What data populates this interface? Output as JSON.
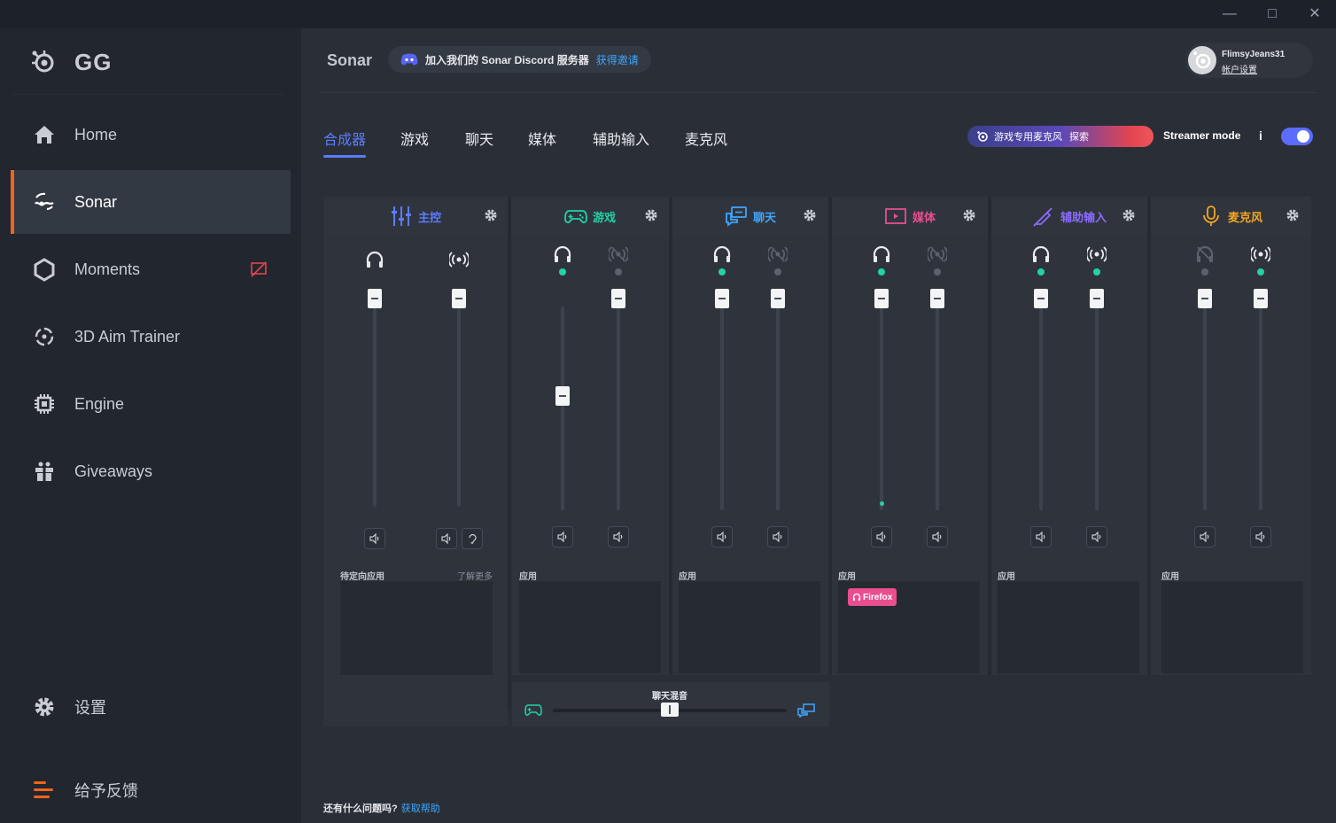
{
  "app": {
    "brand": "GG"
  },
  "window": {
    "minimize_icon": "minimize-icon",
    "maximize_icon": "maximize-icon",
    "close_icon": "close-icon"
  },
  "sidebar": {
    "items": [
      {
        "label": "Home",
        "icon": "home-icon"
      },
      {
        "label": "Sonar",
        "icon": "sonar-icon",
        "active": true
      },
      {
        "label": "Moments",
        "icon": "moments-icon"
      },
      {
        "label": "3D Aim Trainer",
        "icon": "crosshair-icon"
      },
      {
        "label": "Engine",
        "icon": "chip-icon"
      },
      {
        "label": "Giveaways",
        "icon": "gift-icon"
      }
    ],
    "settings_label": "设置",
    "feedback_label": "给予反馈"
  },
  "header": {
    "title": "Sonar",
    "discord_text": "加入我们的 Sonar Discord 服务器",
    "discord_link": "获得邀请",
    "username": "FlimsyJeans31",
    "account_link": "帐户设置"
  },
  "tabs": [
    {
      "label": "合成器",
      "active": true
    },
    {
      "label": "游戏"
    },
    {
      "label": "聊天"
    },
    {
      "label": "媒体"
    },
    {
      "label": "辅助输入"
    },
    {
      "label": "麦克风"
    }
  ],
  "promo": {
    "text": "游戏专用麦克风",
    "link": "探索"
  },
  "streamer": {
    "label": "Streamer mode",
    "info": "i",
    "enabled": true
  },
  "mixer": {
    "master": {
      "label": "主控",
      "color": "#5b7cff",
      "app_label": "待定向应用",
      "learn_more": "了解更多",
      "volume_a": 1.0,
      "volume_b": 1.0
    },
    "game": {
      "label": "游戏",
      "color": "#22d3a6",
      "app_label": "应用",
      "volume_a": 0.55,
      "volume_b": 1.0
    },
    "chat": {
      "label": "聊天",
      "color": "#3ea6ff",
      "app_label": "应用",
      "volume_a": 1.0,
      "volume_b": 1.0
    },
    "media": {
      "label": "媒体",
      "color": "#e94e8f",
      "app_label": "应用",
      "app": "Firefox",
      "volume_a": 1.0,
      "volume_b": 1.0
    },
    "aux": {
      "label": "辅助输入",
      "color": "#8b6bff",
      "app_label": "应用",
      "volume_a": 1.0,
      "volume_b": 1.0
    },
    "mic": {
      "label": "麦克风",
      "color": "#f5a623",
      "app_label": "应用",
      "volume_a": 1.0,
      "volume_b": 1.0
    }
  },
  "chatmix": {
    "label": "聊天混音",
    "balance": 0.5
  },
  "footer": {
    "question": "还有什么问题吗?",
    "link": "获取帮助"
  },
  "colors": {
    "accent": "#5b7cff",
    "active_nav": "#f5631e",
    "live_dot": "#22d3a6",
    "muted_dot": "#5c626c"
  }
}
